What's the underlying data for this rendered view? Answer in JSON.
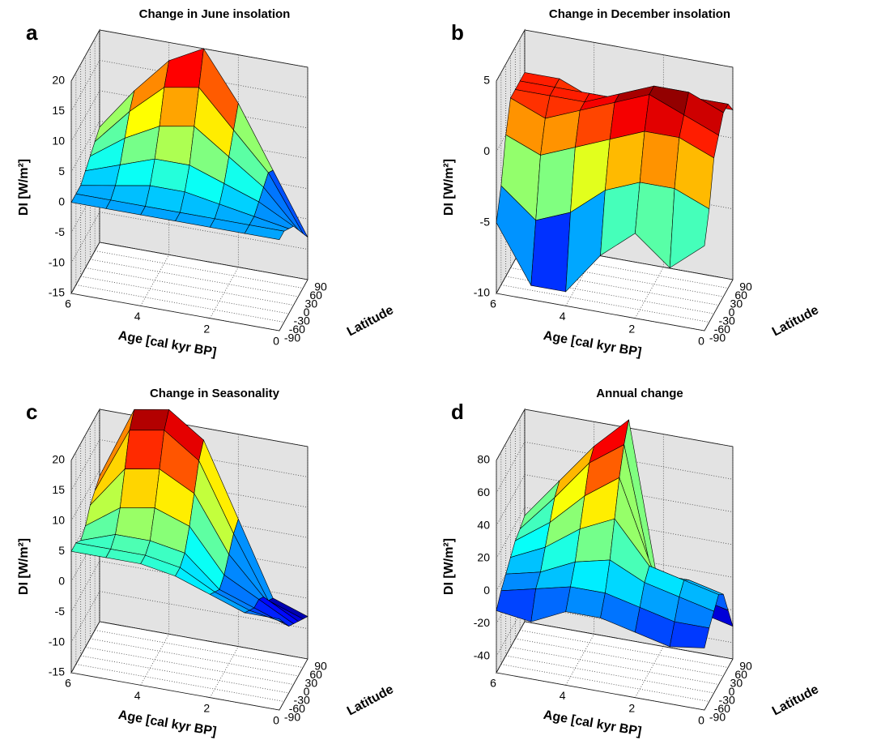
{
  "chart_data": [
    {
      "type": "surface",
      "letter": "a",
      "title": "Change in June insolation",
      "xlabel": "Age [cal kyr BP]",
      "ylabel": "Latitude",
      "zlabel": "DI [W/m²]",
      "x": [
        0,
        1,
        2,
        3,
        4,
        5,
        6
      ],
      "y": [
        -90,
        -60,
        -30,
        0,
        30,
        60,
        90
      ],
      "z": [
        [
          0,
          0,
          -1,
          -2,
          -4,
          -6,
          -8
        ],
        [
          0,
          0,
          0,
          1,
          2,
          3,
          2
        ],
        [
          0,
          0,
          1,
          3,
          6,
          9,
          12
        ],
        [
          0,
          0,
          2,
          5,
          10,
          15,
          20
        ],
        [
          0,
          0,
          2,
          5,
          9,
          14,
          17
        ],
        [
          0,
          0,
          1,
          3,
          6,
          9,
          11
        ],
        [
          0,
          0,
          0,
          1,
          2,
          3,
          4
        ]
      ],
      "xlim": [
        0,
        6
      ],
      "xticks": [
        0,
        2,
        4,
        6
      ],
      "ylim": [
        -90,
        90
      ],
      "yticks": [
        -90,
        -60,
        -30,
        0,
        30,
        60,
        90
      ],
      "zlim": [
        -15,
        20
      ],
      "zticks": [
        -15,
        -10,
        -5,
        0,
        5,
        10,
        15,
        20
      ],
      "colormap": "jet",
      "grid": true
    },
    {
      "type": "surface",
      "letter": "b",
      "title": "Change in December insolation",
      "xlabel": "Age [cal kyr BP]",
      "ylabel": "Latitude",
      "zlabel": "DI [W/m²]",
      "x": [
        0,
        1,
        2,
        3,
        4,
        5,
        6
      ],
      "y": [
        -90,
        -60,
        -30,
        0,
        30,
        60,
        90
      ],
      "z": [
        [
          -4,
          -2,
          1,
          2,
          3,
          3,
          2
        ],
        [
          -6,
          -1,
          2,
          3,
          4,
          3,
          2
        ],
        [
          -4,
          -1,
          2,
          4,
          4,
          3,
          2
        ],
        [
          -6,
          -2,
          1,
          3,
          3,
          2,
          1
        ],
        [
          -9,
          -4,
          0,
          2,
          2,
          2,
          1
        ],
        [
          -9,
          -5,
          -1,
          1,
          2,
          2,
          2
        ],
        [
          -5,
          -3,
          0,
          2,
          2,
          2,
          2
        ]
      ],
      "xlim": [
        0,
        6
      ],
      "xticks": [
        0,
        2,
        4,
        6
      ],
      "ylim": [
        -90,
        90
      ],
      "yticks": [
        -90,
        -60,
        -30,
        0,
        30,
        60,
        90
      ],
      "zlim": [
        -10,
        5
      ],
      "zticks": [
        -10,
        -5,
        0,
        5
      ],
      "colormap": "jet",
      "grid": true
    },
    {
      "type": "surface",
      "letter": "c",
      "title": "Change in Seasonality",
      "xlabel": "Age [cal kyr BP]",
      "ylabel": "Latitude",
      "zlabel": "DI [W/m²]",
      "x": [
        0,
        1,
        2,
        3,
        4,
        5,
        6
      ],
      "y": [
        -90,
        -60,
        -30,
        0,
        30,
        60,
        90
      ],
      "z": [
        [
          0,
          -2,
          -4,
          -5,
          -6,
          -7,
          -8
        ],
        [
          0,
          -1,
          -2,
          -2,
          -3,
          -5,
          -6
        ],
        [
          2,
          1,
          0,
          1,
          3,
          5,
          6
        ],
        [
          4,
          4,
          5,
          8,
          12,
          16,
          18
        ],
        [
          5,
          5,
          6,
          10,
          15,
          20,
          22
        ],
        [
          5,
          5,
          6,
          9,
          14,
          19,
          21
        ],
        [
          5,
          5,
          4,
          5,
          7,
          8,
          9
        ]
      ],
      "xlim": [
        0,
        6
      ],
      "xticks": [
        0,
        2,
        4,
        6
      ],
      "ylim": [
        -90,
        90
      ],
      "yticks": [
        -90,
        -60,
        -30,
        0,
        30,
        60,
        90
      ],
      "zlim": [
        -15,
        20
      ],
      "zticks": [
        -15,
        -10,
        -5,
        0,
        5,
        10,
        15,
        20
      ],
      "colormap": "jet",
      "grid": true
    },
    {
      "type": "surface",
      "letter": "d",
      "title": "Annual change",
      "xlabel": "Age [cal kyr BP]",
      "ylabel": "Latitude",
      "zlabel": "DI [W/m²]",
      "x": [
        0,
        1,
        2,
        3,
        4,
        5,
        6
      ],
      "y": [
        -90,
        -60,
        -30,
        0,
        30,
        60,
        90
      ],
      "z": [
        [
          -12,
          -5,
          0,
          5,
          0,
          -15,
          -30
        ],
        [
          -15,
          -5,
          5,
          10,
          5,
          -10,
          -25
        ],
        [
          -10,
          0,
          10,
          15,
          5,
          -20,
          -30
        ],
        [
          -5,
          5,
          20,
          40,
          60,
          75,
          85
        ],
        [
          -5,
          5,
          15,
          30,
          45,
          60,
          65
        ],
        [
          -15,
          0,
          5,
          15,
          25,
          35,
          40
        ],
        [
          -12,
          -5,
          0,
          5,
          10,
          12,
          15
        ]
      ],
      "xlim": [
        0,
        6
      ],
      "xticks": [
        0,
        2,
        4,
        6
      ],
      "ylim": [
        -90,
        90
      ],
      "yticks": [
        -90,
        -60,
        -30,
        0,
        30,
        60,
        90
      ],
      "zlim": [
        -50,
        80
      ],
      "zticks": [
        -40,
        -20,
        0,
        20,
        40,
        60,
        80
      ],
      "colormap": "jet",
      "grid": true
    }
  ]
}
